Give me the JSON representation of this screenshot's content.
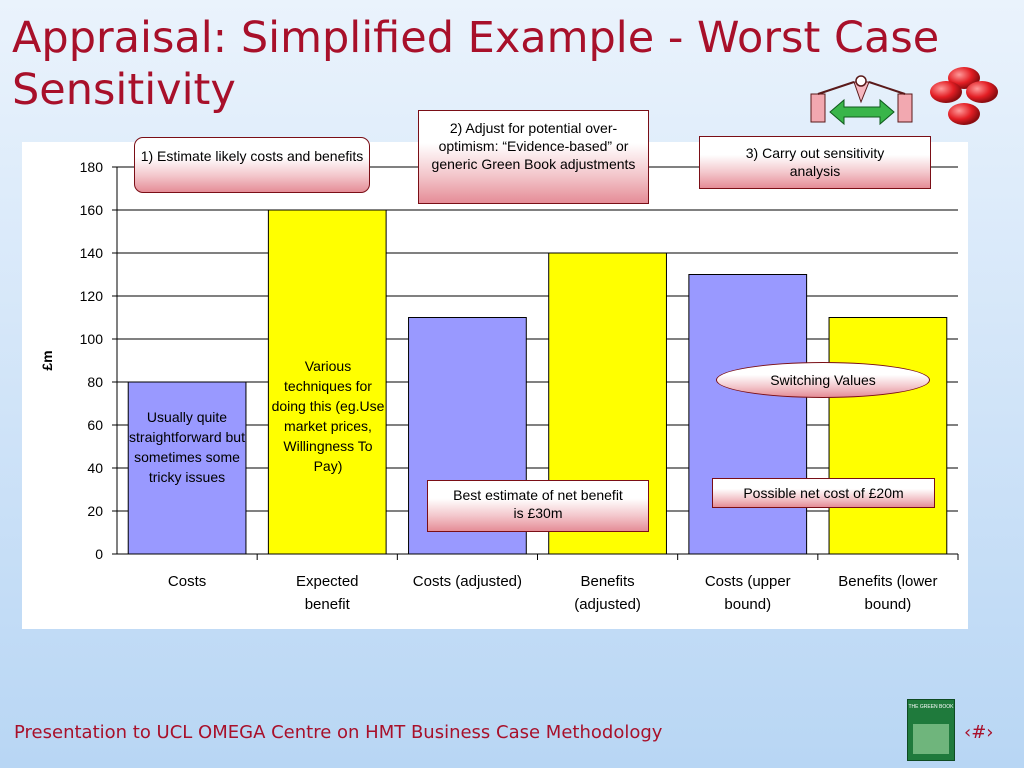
{
  "slide": {
    "title": "Appraisal: Simplified Example - Worst Case Sensitivity",
    "footer": "Presentation to UCL OMEGA Centre on HMT Business Case Methodology",
    "page_number": "‹#›",
    "logo_text": "THE GREEN BOOK"
  },
  "callouts": {
    "step1": "1) Estimate likely costs and benefits",
    "step2": "2) Adjust for potential over-optimism: “Evidence-based” or generic Green Book adjustments",
    "step3": "3) Carry out sensitivity analysis",
    "switching": "Switching Values",
    "best_estimate": "Best estimate of net benefit is £30m",
    "net_cost": "Possible net cost of  £20m"
  },
  "bar_notes": {
    "costs": "Usually quite straightforward but sometimes some tricky issues",
    "expected": "Various techniques for doing this (eg.Use market prices, Willingness To Pay)"
  },
  "colors": {
    "title": "#a8102a",
    "cost_bar": "#9999ff",
    "benefit_bar": "#ffff00",
    "bar_stroke": "#000000"
  },
  "icons": [
    "balance-scale-icon",
    "red-spheres-icon"
  ],
  "chart_data": {
    "type": "bar",
    "categories": [
      "Costs",
      "Expected benefit",
      "Costs (adjusted)",
      "Benefits (adjusted)",
      "Costs (upper bound)",
      "Benefits (lower bound)"
    ],
    "category_lines": [
      [
        "Costs"
      ],
      [
        "Expected",
        "benefit"
      ],
      [
        "Costs (adjusted)"
      ],
      [
        "Benefits",
        "(adjusted)"
      ],
      [
        "Costs (upper",
        "bound)"
      ],
      [
        "Benefits (lower",
        "bound)"
      ]
    ],
    "values": [
      80,
      160,
      110,
      140,
      130,
      110
    ],
    "bar_kinds": [
      "cost",
      "benefit",
      "cost",
      "benefit",
      "cost",
      "benefit"
    ],
    "ylabel": "£m",
    "ylim": [
      0,
      180
    ],
    "yticks": [
      0,
      20,
      40,
      60,
      80,
      100,
      120,
      140,
      160,
      180
    ],
    "grid": true,
    "legend": "none"
  }
}
